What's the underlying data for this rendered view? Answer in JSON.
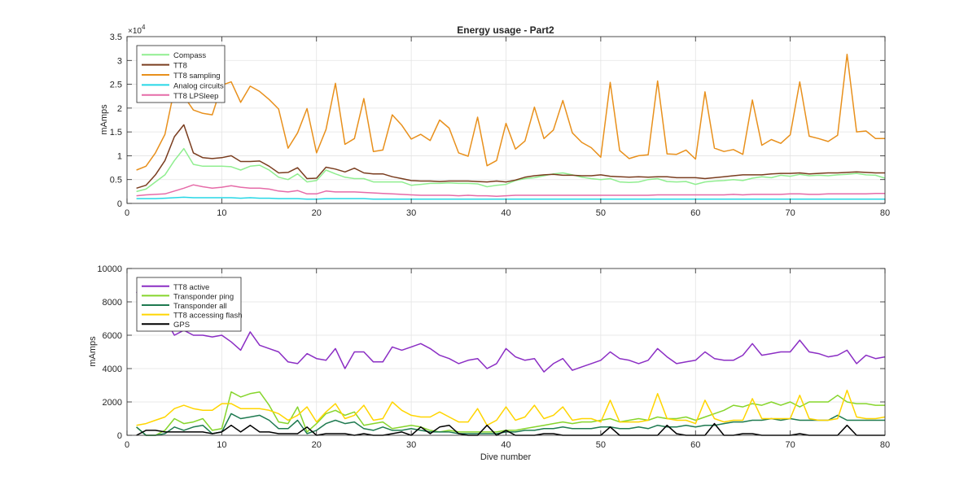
{
  "figure": {
    "title": "Energy usage - Part2"
  },
  "chart_data": [
    {
      "type": "line",
      "title": "Energy usage - Part2",
      "xlabel": "",
      "ylabel": "mAmps",
      "xlim": [
        0,
        80
      ],
      "ylim": [
        0,
        35000
      ],
      "x_ticks": [
        0,
        10,
        20,
        30,
        40,
        50,
        60,
        70,
        80
      ],
      "y_ticks": [
        0,
        5000,
        10000,
        15000,
        20000,
        25000,
        30000,
        35000
      ],
      "y_tick_labels": [
        "0",
        "0.5",
        "1",
        "1.5",
        "2",
        "2.5",
        "3",
        "3.5"
      ],
      "y_multiplier": "×10",
      "y_multiplier_exp": "4",
      "grid": true,
      "legend_position": "top-left",
      "x": [
        1,
        2,
        3,
        4,
        5,
        6,
        7,
        8,
        9,
        10,
        11,
        12,
        13,
        14,
        15,
        16,
        17,
        18,
        19,
        20,
        21,
        22,
        23,
        24,
        25,
        26,
        27,
        28,
        29,
        30,
        31,
        32,
        33,
        34,
        35,
        36,
        37,
        38,
        39,
        40,
        41,
        42,
        43,
        44,
        45,
        46,
        47,
        48,
        49,
        50,
        51,
        52,
        53,
        54,
        55,
        56,
        57,
        58,
        59,
        60,
        61,
        62,
        63,
        64,
        65,
        66,
        67,
        68,
        69,
        70,
        71,
        72,
        73,
        74,
        75,
        76,
        77,
        78,
        79,
        80
      ],
      "series": [
        {
          "name": "Compass",
          "color": "#90ee90",
          "values": [
            2500,
            3000,
            4500,
            6000,
            9000,
            11500,
            8200,
            7800,
            7800,
            7800,
            7700,
            7000,
            7800,
            8000,
            7000,
            5500,
            5000,
            6200,
            4500,
            4800,
            7000,
            6200,
            5500,
            5200,
            5200,
            4500,
            4500,
            4500,
            4500,
            3800,
            4000,
            4200,
            4200,
            4300,
            4200,
            4200,
            4100,
            3500,
            3800,
            4000,
            4800,
            5200,
            5400,
            5800,
            6200,
            6400,
            6000,
            5500,
            5200,
            5000,
            5200,
            4500,
            4400,
            4500,
            5000,
            5200,
            4600,
            4500,
            4600,
            4000,
            4500,
            4700,
            4800,
            5000,
            4800,
            5300,
            5600,
            5400,
            5900,
            5700,
            6100,
            5800,
            5900,
            5800,
            6000,
            6100,
            6300,
            6000,
            5900,
            5300
          ]
        },
        {
          "name": "TT8",
          "color": "#7a3d1f",
          "values": [
            3200,
            3800,
            6000,
            9000,
            14000,
            16500,
            10600,
            9600,
            9400,
            9600,
            10000,
            8800,
            8800,
            8900,
            7800,
            6400,
            6500,
            7500,
            5200,
            5300,
            7600,
            7200,
            6600,
            7400,
            6400,
            6200,
            6200,
            5600,
            5200,
            4800,
            4700,
            4700,
            4600,
            4700,
            4700,
            4700,
            4600,
            4500,
            4700,
            4500,
            4900,
            5500,
            5800,
            6000,
            6100,
            5900,
            5900,
            5800,
            5800,
            6000,
            5700,
            5600,
            5500,
            5600,
            5500,
            5600,
            5600,
            5400,
            5400,
            5400,
            5200,
            5400,
            5600,
            5800,
            6000,
            6000,
            6000,
            6200,
            6300,
            6300,
            6400,
            6200,
            6300,
            6400,
            6400,
            6500,
            6600,
            6500,
            6400,
            6400
          ]
        },
        {
          "name": "TT8 sampling",
          "color": "#e8901c",
          "values": [
            7000,
            7800,
            10600,
            14500,
            24000,
            22500,
            19600,
            18900,
            18600,
            24800,
            25500,
            21200,
            24600,
            23500,
            21800,
            19800,
            11600,
            14800,
            19900,
            10600,
            15500,
            25200,
            12400,
            13600,
            22000,
            10900,
            11200,
            18600,
            16400,
            13500,
            14500,
            13200,
            17500,
            15800,
            10600,
            9900,
            18100,
            7900,
            9000,
            16800,
            11400,
            13100,
            20200,
            13600,
            15400,
            21600,
            14800,
            12800,
            11700,
            9700,
            25400,
            11100,
            9400,
            10000,
            10200,
            25700,
            10400,
            10300,
            11200,
            9300,
            23400,
            11600,
            10900,
            11300,
            10300,
            21700,
            12200,
            13400,
            12600,
            14400,
            25500,
            14100,
            13600,
            13000,
            14300,
            31300,
            15000,
            15200,
            13600,
            13600
          ]
        },
        {
          "name": "Analog circuits",
          "color": "#26d7e6",
          "values": [
            1000,
            1000,
            1000,
            1100,
            1200,
            1300,
            1200,
            1200,
            1200,
            1200,
            1200,
            1100,
            1200,
            1100,
            1100,
            1000,
            1000,
            1000,
            900,
            900,
            1000,
            1000,
            1000,
            1000,
            1000,
            900,
            900,
            900,
            900,
            900,
            900,
            900,
            900,
            900,
            900,
            900,
            900,
            900,
            900,
            900,
            900,
            900,
            900,
            900,
            900,
            900,
            900,
            900,
            900,
            900,
            900,
            900,
            900,
            900,
            900,
            900,
            900,
            900,
            900,
            900,
            900,
            900,
            900,
            900,
            900,
            900,
            900,
            900,
            900,
            900,
            900,
            900,
            900,
            900,
            900,
            900,
            900,
            900,
            900,
            900
          ]
        },
        {
          "name": "TT8 LPSleep",
          "color": "#e66ba8",
          "values": [
            1600,
            1800,
            1900,
            2000,
            2600,
            3200,
            3900,
            3500,
            3200,
            3400,
            3700,
            3400,
            3200,
            3200,
            3000,
            2600,
            2400,
            2700,
            2000,
            2000,
            2600,
            2400,
            2400,
            2400,
            2300,
            2200,
            2100,
            2000,
            1900,
            1800,
            1700,
            1700,
            1700,
            1700,
            1600,
            1700,
            1600,
            1600,
            1500,
            1600,
            1700,
            1700,
            1700,
            1700,
            1700,
            1700,
            1700,
            1700,
            1700,
            1700,
            1700,
            1700,
            1700,
            1700,
            1700,
            1800,
            1800,
            1800,
            1800,
            1800,
            1800,
            1800,
            1800,
            1900,
            1800,
            1900,
            1900,
            1900,
            1900,
            2000,
            2000,
            1900,
            1900,
            2000,
            2000,
            2000,
            2000,
            2000,
            2100,
            2100
          ]
        }
      ]
    },
    {
      "type": "line",
      "title": "",
      "xlabel": "Dive number",
      "ylabel": "mAmps",
      "xlim": [
        0,
        80
      ],
      "ylim": [
        0,
        10000
      ],
      "x_ticks": [
        0,
        10,
        20,
        30,
        40,
        50,
        60,
        70,
        80
      ],
      "y_ticks": [
        0,
        2000,
        4000,
        6000,
        8000,
        10000
      ],
      "y_tick_labels": [
        "0",
        "2000",
        "4000",
        "6000",
        "8000",
        "10000"
      ],
      "grid": true,
      "legend_position": "top-left",
      "x": [
        1,
        2,
        3,
        4,
        5,
        6,
        7,
        8,
        9,
        10,
        11,
        12,
        13,
        14,
        15,
        16,
        17,
        18,
        19,
        20,
        21,
        22,
        23,
        24,
        25,
        26,
        27,
        28,
        29,
        30,
        31,
        32,
        33,
        34,
        35,
        36,
        37,
        38,
        39,
        40,
        41,
        42,
        43,
        44,
        45,
        46,
        47,
        48,
        49,
        50,
        51,
        52,
        53,
        54,
        55,
        56,
        57,
        58,
        59,
        60,
        61,
        62,
        63,
        64,
        65,
        66,
        67,
        68,
        69,
        70,
        71,
        72,
        73,
        74,
        75,
        76,
        77,
        78,
        79,
        80
      ],
      "series": [
        {
          "name": "TT8 active",
          "color": "#8b2ec4",
          "values": [
            8600,
            8000,
            7800,
            7000,
            6000,
            6300,
            6000,
            6000,
            5900,
            6000,
            5600,
            5100,
            6200,
            5400,
            5200,
            5000,
            4400,
            4300,
            4900,
            4600,
            4500,
            5200,
            4000,
            5000,
            5000,
            4400,
            4400,
            5300,
            5100,
            5300,
            5500,
            5200,
            4800,
            4600,
            4300,
            4500,
            4600,
            4000,
            4300,
            5200,
            4700,
            4500,
            4600,
            3800,
            4300,
            4600,
            3900,
            4100,
            4300,
            4500,
            5000,
            4600,
            4500,
            4300,
            4500,
            5200,
            4700,
            4300,
            4400,
            4500,
            5000,
            4600,
            4500,
            4500,
            4800,
            5500,
            4800,
            4900,
            5000,
            5000,
            5700,
            5000,
            4900,
            4700,
            4800,
            5100,
            4300,
            4800,
            4600,
            4700
          ]
        },
        {
          "name": "Transponder ping",
          "color": "#86d52c",
          "values": [
            500,
            0,
            0,
            300,
            1000,
            700,
            800,
            1000,
            300,
            400,
            2600,
            2300,
            2500,
            2600,
            1800,
            800,
            700,
            1700,
            200,
            700,
            1300,
            1500,
            1200,
            1400,
            600,
            700,
            800,
            400,
            500,
            600,
            500,
            300,
            200,
            300,
            200,
            200,
            200,
            200,
            200,
            300,
            300,
            400,
            500,
            600,
            700,
            800,
            700,
            800,
            800,
            900,
            1000,
            800,
            900,
            1000,
            900,
            1100,
            1000,
            1000,
            1100,
            900,
            1100,
            1300,
            1500,
            1800,
            1700,
            1900,
            1800,
            2000,
            1800,
            2000,
            1700,
            2000,
            2000,
            2000,
            2400,
            2000,
            1900,
            1900,
            1800,
            1800
          ]
        },
        {
          "name": "Transponder all",
          "color": "#1e7a50",
          "values": [
            500,
            0,
            0,
            100,
            500,
            300,
            500,
            600,
            100,
            200,
            1300,
            1000,
            1100,
            1200,
            900,
            400,
            400,
            900,
            100,
            300,
            700,
            900,
            700,
            800,
            400,
            300,
            500,
            300,
            300,
            400,
            300,
            200,
            200,
            200,
            100,
            100,
            100,
            100,
            100,
            200,
            200,
            300,
            300,
            400,
            400,
            500,
            400,
            400,
            400,
            500,
            500,
            400,
            400,
            500,
            400,
            600,
            500,
            500,
            600,
            500,
            600,
            600,
            700,
            800,
            800,
            900,
            900,
            1000,
            900,
            1000,
            900,
            900,
            900,
            900,
            1200,
            900,
            900,
            900,
            900,
            900
          ]
        },
        {
          "name": "TT8 accessing flash",
          "color": "#ffd500",
          "values": [
            600,
            700,
            900,
            1100,
            1600,
            1800,
            1600,
            1500,
            1500,
            1900,
            1900,
            1600,
            1600,
            1600,
            1500,
            1300,
            900,
            1200,
            1700,
            800,
            1400,
            1900,
            1000,
            1200,
            1800,
            900,
            1000,
            2000,
            1500,
            1200,
            1100,
            1100,
            1400,
            1100,
            800,
            800,
            1600,
            600,
            900,
            1700,
            900,
            1100,
            1800,
            1000,
            1200,
            1700,
            900,
            1000,
            1000,
            800,
            2100,
            800,
            800,
            800,
            900,
            2500,
            1000,
            900,
            900,
            700,
            2100,
            1000,
            800,
            900,
            900,
            2200,
            1000,
            1000,
            1000,
            1000,
            2400,
            1000,
            900,
            900,
            1000,
            2700,
            1100,
            1000,
            1000,
            1100
          ]
        },
        {
          "name": "GPS",
          "color": "#000000",
          "values": [
            0,
            300,
            300,
            200,
            200,
            200,
            200,
            200,
            100,
            200,
            600,
            200,
            600,
            200,
            200,
            100,
            100,
            100,
            500,
            0,
            100,
            100,
            100,
            0,
            100,
            0,
            0,
            100,
            200,
            0,
            500,
            100,
            500,
            600,
            100,
            0,
            0,
            600,
            0,
            300,
            0,
            0,
            0,
            100,
            100,
            0,
            0,
            0,
            0,
            0,
            500,
            0,
            0,
            0,
            0,
            0,
            600,
            100,
            0,
            0,
            0,
            700,
            0,
            0,
            100,
            100,
            0,
            0,
            0,
            0,
            100,
            0,
            0,
            0,
            0,
            600,
            0,
            0,
            0,
            0
          ]
        }
      ]
    }
  ]
}
